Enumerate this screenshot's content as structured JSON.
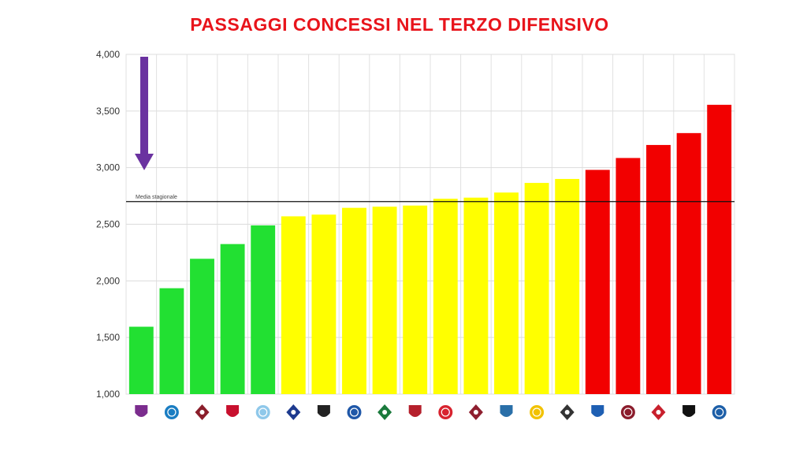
{
  "title": "PASSAGGI CONCESSI NEL TERZO DIFENSIVO",
  "chart_data": {
    "type": "bar",
    "ylim": [
      1000,
      4000
    ],
    "yticks": [
      1000,
      1500,
      2000,
      2500,
      3000,
      3500,
      4000
    ],
    "ytick_labels": [
      "1,000",
      "1,500",
      "2,000",
      "2,500",
      "3,000",
      "3,500",
      "4,000"
    ],
    "average": {
      "label": "Media stagionale",
      "value": 2700
    },
    "grid": true,
    "categories": [
      "fiorentina-logo",
      "napoli-logo",
      "torino-logo",
      "milan-logo",
      "lazio-logo",
      "inter-logo",
      "udinese-logo",
      "atalanta-logo",
      "sassuolo-logo",
      "bologna-logo",
      "monza-logo",
      "roma-logo",
      "lecce-logo",
      "verona-logo",
      "spezia-logo",
      "sampdoria-logo",
      "salernitana-logo",
      "cremonese-logo",
      "juventus-logo",
      "empoli-logo"
    ],
    "values": [
      1595,
      1935,
      2195,
      2325,
      2490,
      2570,
      2585,
      2645,
      2655,
      2665,
      2725,
      2735,
      2780,
      2865,
      2900,
      2980,
      3085,
      3200,
      3305,
      3555
    ],
    "bar_colors": [
      "#22e032",
      "#22e032",
      "#22e032",
      "#22e032",
      "#22e032",
      "#ffff00",
      "#ffff00",
      "#ffff00",
      "#ffff00",
      "#ffff00",
      "#ffff00",
      "#ffff00",
      "#ffff00",
      "#ffff00",
      "#ffff00",
      "#f20000",
      "#f20000",
      "#f20000",
      "#f20000",
      "#f20000"
    ]
  },
  "logo_colors": [
    "#7b2d8e",
    "#1a7dc2",
    "#8b1e2b",
    "#c8102e",
    "#8fc8ea",
    "#1d3a8f",
    "#222222",
    "#1f57a8",
    "#1a7a3c",
    "#b5202c",
    "#d8232f",
    "#8e1f2f",
    "#2a6fa8",
    "#f2c200",
    "#333333",
    "#1e5fb3",
    "#8b1c2c",
    "#c8202d",
    "#111111",
    "#1d5fa8"
  ],
  "arrow_color": "#6a32a0",
  "colors": {
    "green": "#22e032",
    "yellow": "#ffff00",
    "red": "#f20000",
    "title": "#e8141b"
  }
}
